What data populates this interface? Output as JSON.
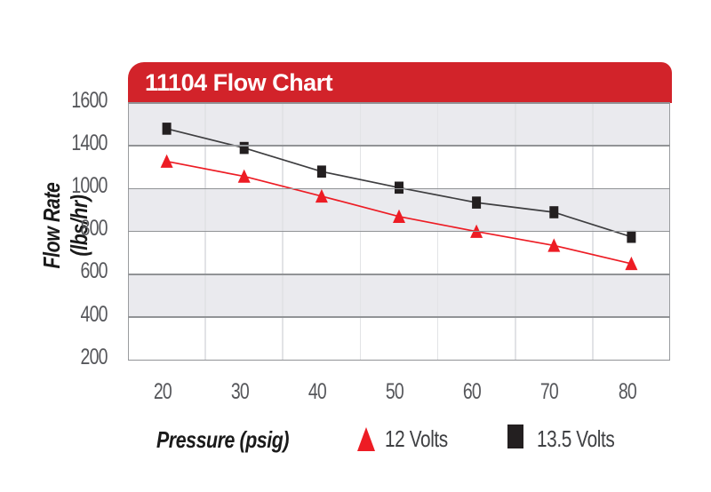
{
  "chart_data": {
    "type": "line",
    "title": "11104 Flow Chart",
    "xlabel": "Pressure (psig)",
    "ylabel": "Flow Rate (lbs/hr)",
    "x": [
      20,
      30,
      40,
      50,
      60,
      70,
      80
    ],
    "x_tick_labels": [
      "20",
      "30",
      "40",
      "50",
      "60",
      "70",
      "80"
    ],
    "y_tick_labels": [
      "1600",
      "1400",
      "1000",
      "800",
      "600",
      "400",
      "200"
    ],
    "y_axis_note": "ticks evenly spaced as printed; 1200 label not shown on source chart",
    "series": [
      {
        "name": "13.5 Volts",
        "marker": "square",
        "color": "#231f20",
        "line_color": "#3e3e40",
        "values": [
          1480,
          1380,
          1160,
          1010,
          935,
          890,
          775
        ]
      },
      {
        "name": "12 Volts",
        "marker": "triangle",
        "color": "#ed1c24",
        "line_color": "#ed1c24",
        "values": [
          1255,
          1115,
          965,
          870,
          800,
          735,
          650
        ]
      }
    ],
    "legend": [
      {
        "label": "12 Volts",
        "marker": "triangle",
        "color": "#ed1c24"
      },
      {
        "label": "13.5 Volts",
        "marker": "square",
        "color": "#231f20"
      }
    ],
    "legend_position": "bottom",
    "grid": {
      "h_lines": true,
      "v_lines": true,
      "alternating_bands": true
    },
    "colors": {
      "banner": "#d2232a",
      "band": "#eaeaee",
      "h_grid": "#919396",
      "v_grid": "#e2e3e6",
      "plot_border": "#9a9c9f",
      "tick_text": "#55565a",
      "legend_text": "#3f4043",
      "title_text": "#ffffff"
    }
  }
}
